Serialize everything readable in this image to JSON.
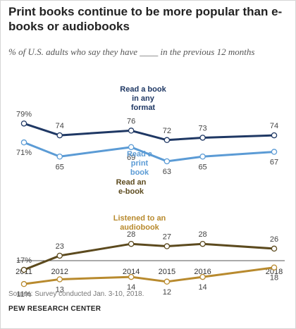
{
  "title": "Print books continue to be more popular than e-books or audiobooks",
  "subtitle": "% of U.S. adults who say they have ____ in the previous 12 months",
  "source": "Source: Survey conducted Jan. 3-10, 2018.",
  "organization": "PEW RESEARCH CENTER",
  "chart_data": {
    "type": "line",
    "x": [
      2011,
      2012,
      2014,
      2015,
      2016,
      2018
    ],
    "xticks": [
      "2011",
      "2012",
      "2014",
      "2015",
      "2016",
      "2018"
    ],
    "xlim": [
      2011,
      2018
    ],
    "ylim": [
      0,
      100
    ],
    "grid": false,
    "legend": "none",
    "series": [
      {
        "name": "Read a book in any format",
        "values": [
          79,
          74,
          76,
          72,
          73,
          74
        ],
        "color": "#1f3864"
      },
      {
        "name": "Read a print book",
        "values": [
          71,
          65,
          69,
          63,
          65,
          67
        ],
        "color": "#5b9bd5"
      },
      {
        "name": "Read an e-book",
        "values": [
          17,
          23,
          28,
          27,
          28,
          26
        ],
        "color": "#5c4a1e"
      },
      {
        "name": "Listened to an audiobook",
        "values": [
          11,
          13,
          14,
          12,
          14,
          18
        ],
        "color": "#b88a2e"
      }
    ]
  }
}
